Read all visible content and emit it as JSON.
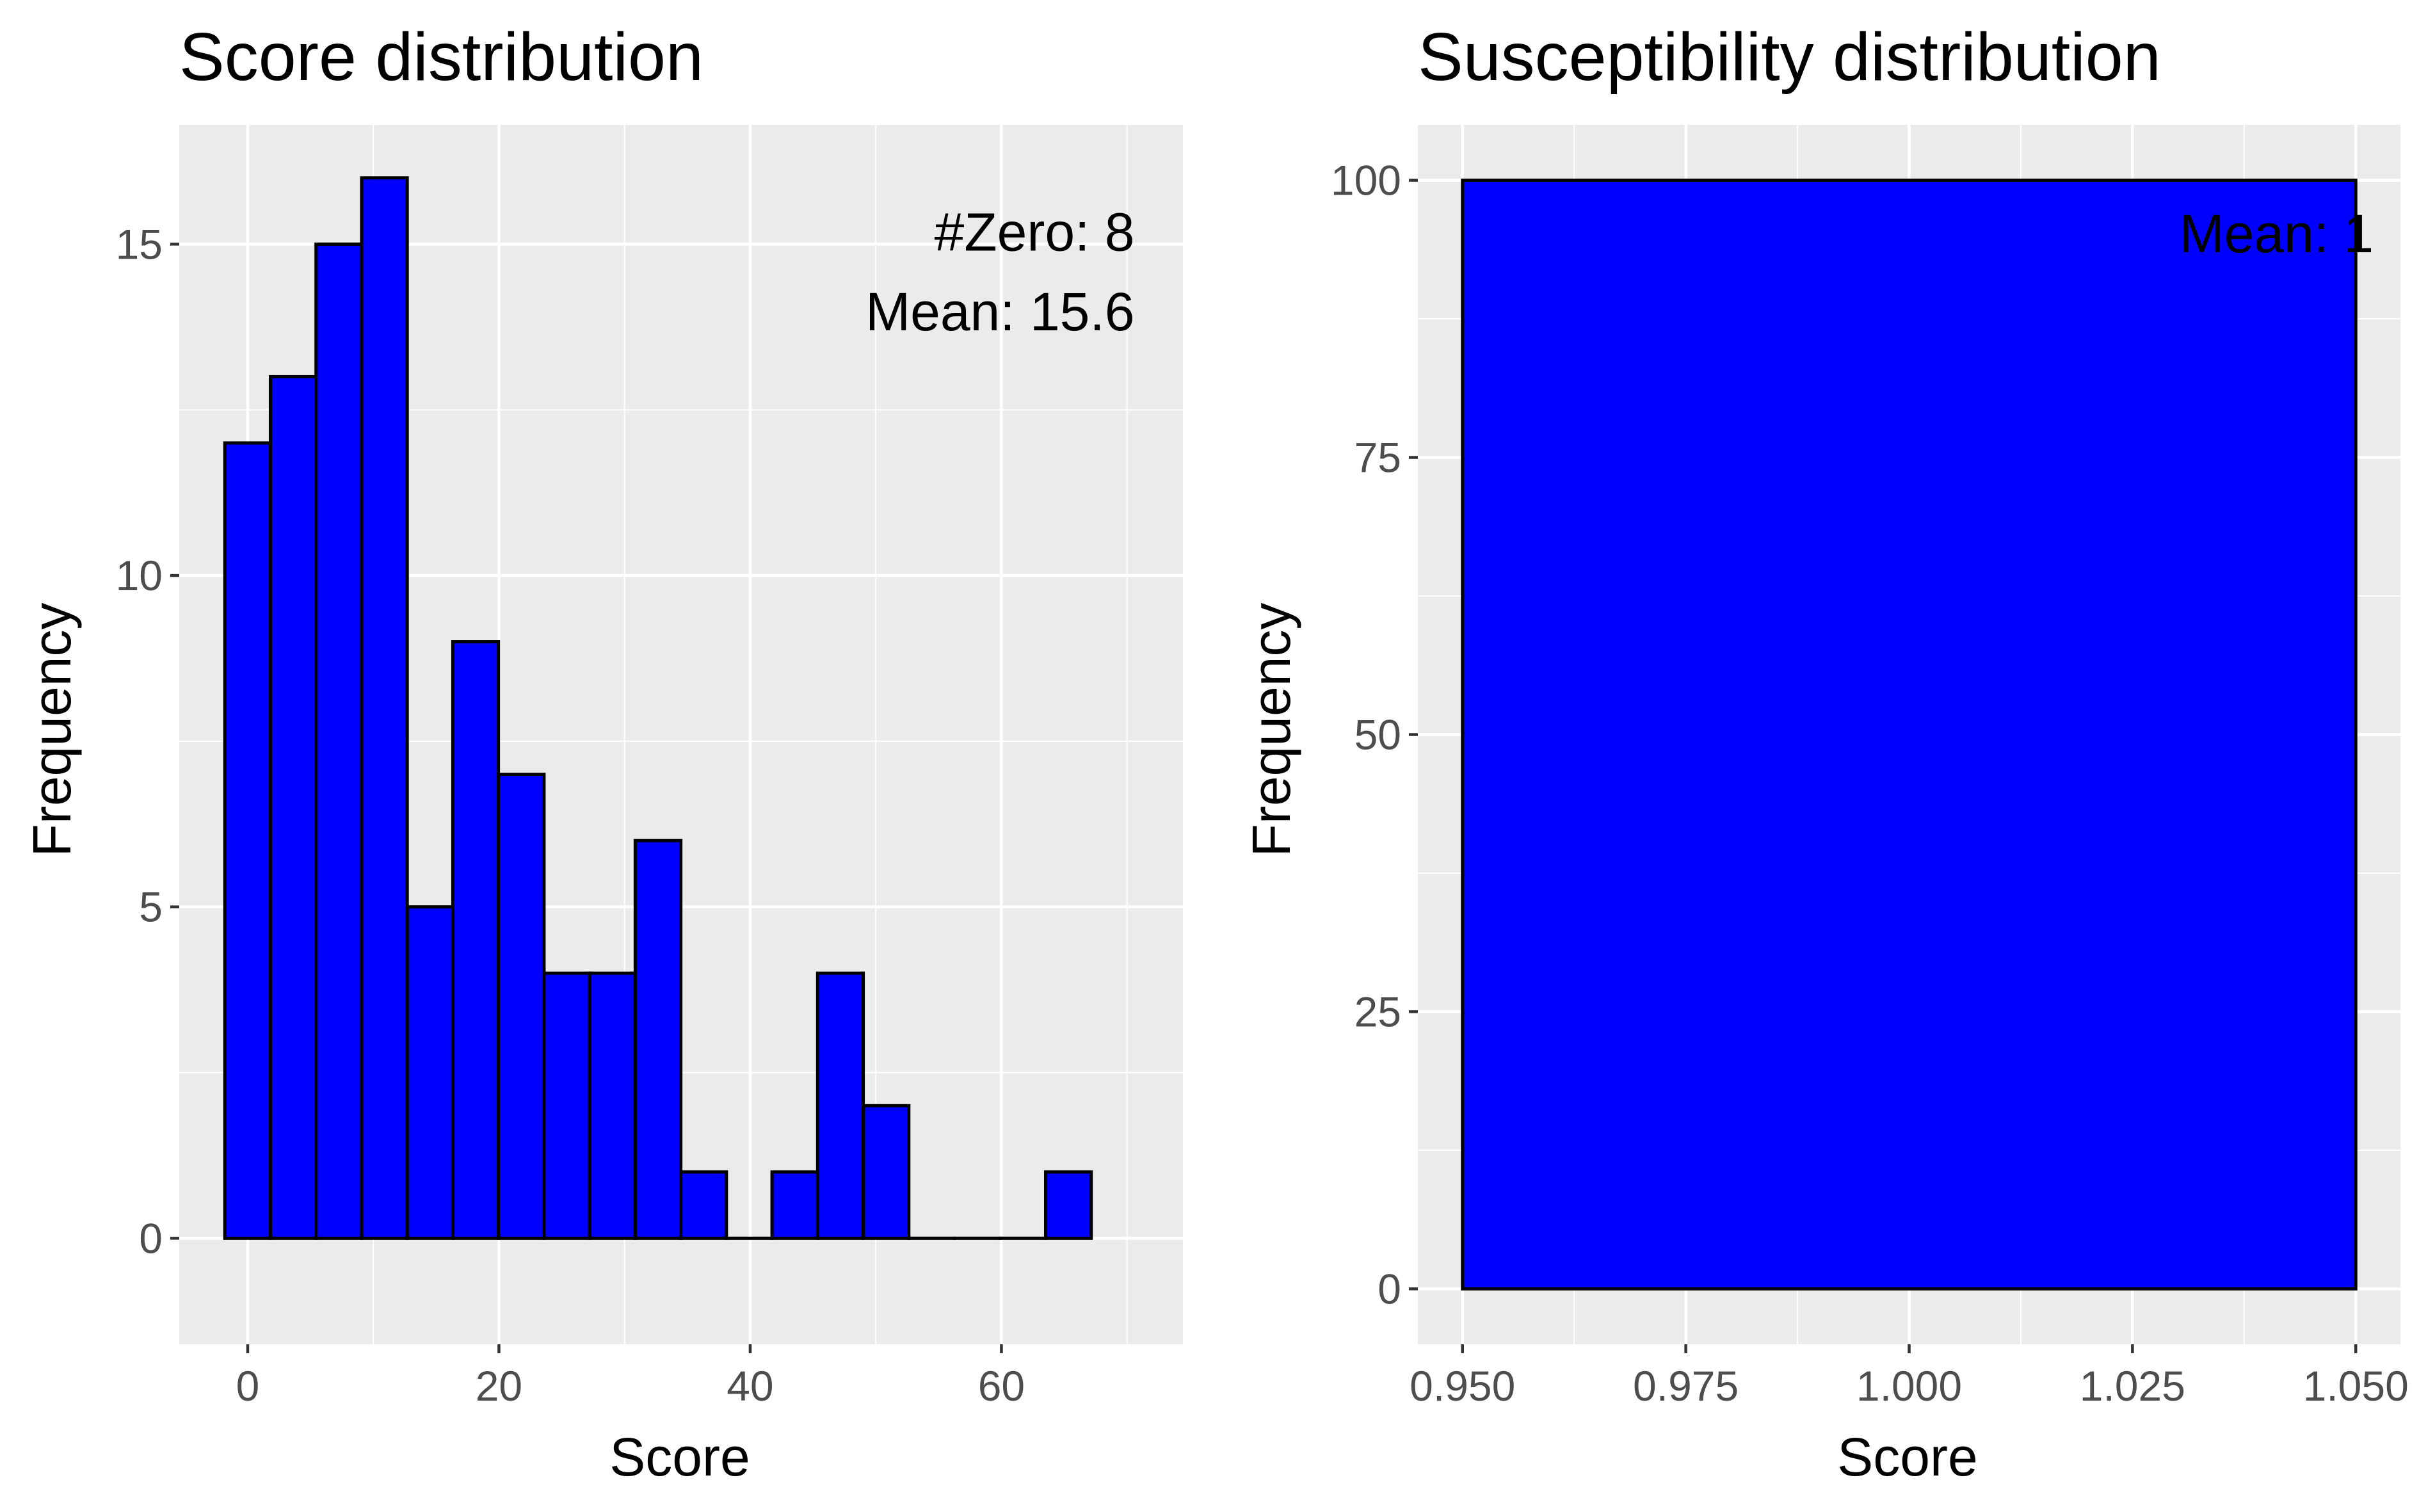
{
  "chart_data": [
    {
      "type": "bar",
      "title": "Score distribution",
      "xlabel": "Score",
      "ylabel": "Frequency",
      "xlim": [
        -5.45,
        74.45
      ],
      "ylim": [
        -1.6,
        16.8
      ],
      "xticks": [
        0,
        20,
        40,
        60
      ],
      "yticks": [
        0,
        5,
        10,
        15
      ],
      "xtick_labels": [
        "0",
        "20",
        "40",
        "60"
      ],
      "ytick_labels": [
        "0",
        "5",
        "10",
        "15"
      ],
      "bin_width": 3.63,
      "bin_start": -1.82,
      "values": [
        12,
        13,
        15,
        16,
        5,
        9,
        7,
        4,
        4,
        6,
        1,
        0,
        1,
        4,
        2,
        0,
        0,
        0,
        1
      ],
      "fill_color": "#0000FF",
      "edge_color": "#000000",
      "panel_color": "#EBEBEB",
      "grid": true,
      "annotations": [
        {
          "text": "#Zero: 8",
          "x": 70.6,
          "y": 14.9
        },
        {
          "text": "Mean: 15.6",
          "x": 70.6,
          "y": 13.7
        }
      ]
    },
    {
      "type": "bar",
      "title": "Susceptibility distribution",
      "xlabel": "Score",
      "ylabel": "Frequency",
      "xlim": [
        0.945,
        1.055
      ],
      "ylim": [
        -5,
        105
      ],
      "xticks": [
        0.95,
        0.975,
        1.0,
        1.025,
        1.05
      ],
      "yticks": [
        0,
        25,
        50,
        75,
        100
      ],
      "xtick_labels": [
        "0.950",
        "0.975",
        "1.000",
        "1.025",
        "1.050"
      ],
      "ytick_labels": [
        "0",
        "25",
        "50",
        "75",
        "100"
      ],
      "bin_width": 0.1,
      "bin_start": 0.95,
      "values": [
        100
      ],
      "fill_color": "#0000FF",
      "edge_color": "#000000",
      "panel_color": "#EBEBEB",
      "grid": true,
      "annotations": [
        {
          "text": "Mean: 1",
          "x": 1.052,
          "y": 93.5
        }
      ]
    }
  ]
}
